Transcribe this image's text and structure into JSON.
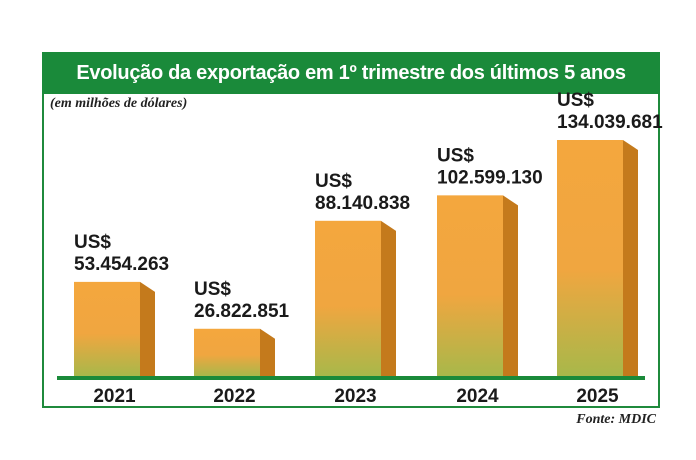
{
  "header": {
    "title": "Evolução da exportação em 1º trimestre dos últimos 5 anos",
    "subtitle": "(em milhões de dólares)"
  },
  "footer": {
    "source": "Fonte: MDIC"
  },
  "colors": {
    "frame": "#1f8a3c",
    "title_bg": "#1a8a3a",
    "bar_top": "#f4a73e",
    "bar_bottom": "#a8b84a",
    "bar_side": "#c47a1c",
    "baseline": "#1a8a3a"
  },
  "chart_data": {
    "type": "bar",
    "title": "Evolução da exportação em 1º trimestre dos últimos 5 anos",
    "subtitle": "(em milhões de dólares)",
    "categories": [
      "2021",
      "2022",
      "2023",
      "2024",
      "2025"
    ],
    "values": [
      53454263,
      26822851,
      88140838,
      102599130,
      134039681
    ],
    "value_labels": [
      [
        "US$",
        "53.454.263"
      ],
      [
        "US$",
        "26.822.851"
      ],
      [
        "US$",
        "88.140.838"
      ],
      [
        "US$",
        "102.599.130"
      ],
      [
        "US$",
        "134.039.681"
      ]
    ],
    "xlabel": "",
    "ylabel": "",
    "ylim": [
      0,
      134039681
    ],
    "grid": false,
    "legend": "none"
  }
}
